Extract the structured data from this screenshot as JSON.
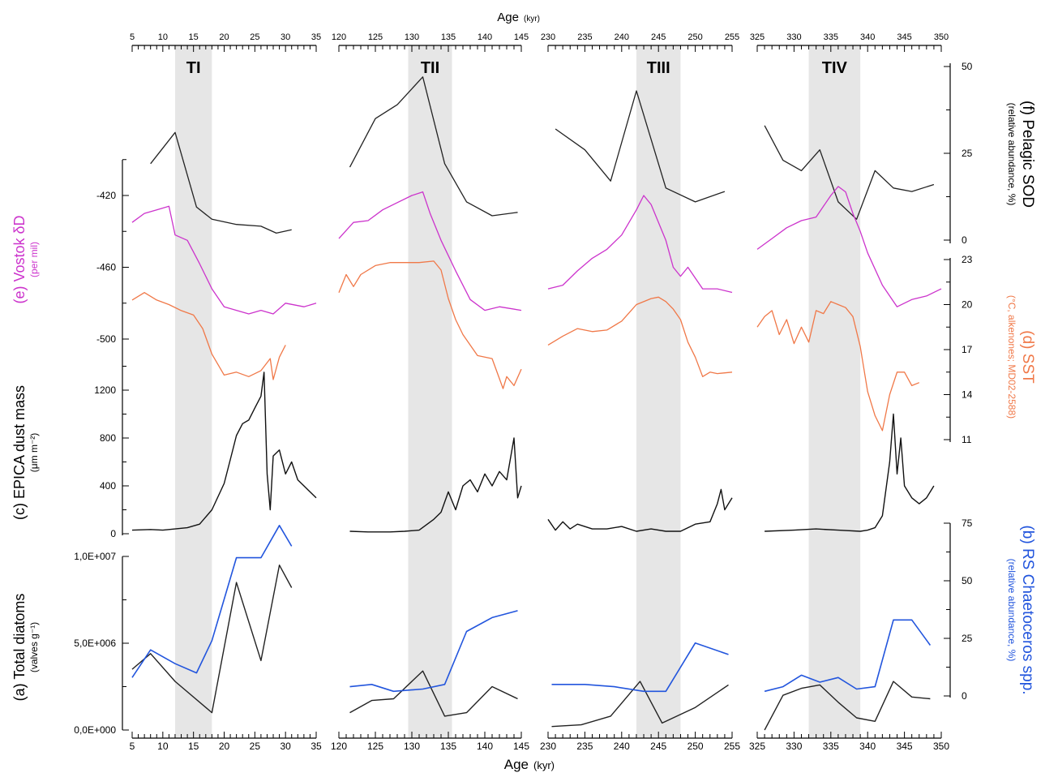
{
  "figure": {
    "top_axis_label": "Age",
    "top_axis_unit": "(kyr)",
    "bottom_axis_label": "Age",
    "bottom_axis_unit": "(kyr)"
  },
  "colors": {
    "pelagic": "#222222",
    "vostok": "#cc33cc",
    "sst": "#f07848",
    "dust": "#111111",
    "diatoms": "#222222",
    "chaetoceros": "#2255dd",
    "shade": "#e6e6e6"
  },
  "left_axes": {
    "vostok": {
      "label_main": "(e) Vostok δD",
      "label_unit": "(per mil)",
      "ticks": [
        "-420",
        "-460",
        "-500"
      ]
    },
    "dust": {
      "label_main": "(c) EPICA dust mass",
      "label_unit": "(μm m⁻²)",
      "ticks": [
        "1200",
        "800",
        "400",
        "0"
      ]
    },
    "diatoms": {
      "label_main": "(a) Total diatoms",
      "label_unit": "(valves g⁻¹)",
      "ticks": [
        "1,0E+007",
        "5,0E+006",
        "0,0E+000"
      ]
    }
  },
  "right_axes": {
    "pelagic": {
      "label_main": "(f) Pelagic SOD",
      "label_unit": "(relative abundance, %)",
      "ticks": [
        "50",
        "25",
        "0"
      ]
    },
    "sst": {
      "label_main": "(d) SST",
      "label_unit": "(°C, alkenones; MD02-2588)",
      "ticks": [
        "23",
        "20",
        "17",
        "14",
        "11"
      ]
    },
    "chaetoceros": {
      "label_main": "(b) RS Chaetoceros spp.",
      "label_unit": "(relative abundance, %)",
      "ticks": [
        "75",
        "50",
        "25",
        "0"
      ]
    }
  },
  "chart_data": [
    {
      "type": "line",
      "panel": "TI",
      "title": "TI",
      "xlim": [
        5,
        35
      ],
      "xticks": [
        "5",
        "10",
        "15",
        "20",
        "25",
        "30",
        "35"
      ],
      "shade": [
        12,
        18
      ],
      "series": [
        {
          "name": "(f) Pelagic SOD",
          "x": [
            8,
            12,
            15.5,
            18,
            22,
            26,
            28.5,
            31
          ],
          "y": [
            22,
            31,
            9.5,
            6,
            4.5,
            4,
            2,
            3
          ]
        },
        {
          "name": "(e) Vostok δD",
          "x": [
            5,
            7,
            9,
            11,
            12,
            14,
            16,
            18,
            20,
            22,
            24,
            26,
            28,
            30,
            33,
            35
          ],
          "y": [
            -435,
            -430,
            -428,
            -426,
            -442,
            -445,
            -458,
            -472,
            -482,
            -484,
            -486,
            -484,
            -486,
            -480,
            -482,
            -480
          ]
        },
        {
          "name": "(d) SST",
          "x": [
            5,
            7,
            9,
            11,
            13,
            15,
            16.5,
            18,
            20,
            22,
            24,
            26,
            27.5,
            28,
            29,
            30
          ],
          "y": [
            20.3,
            20.8,
            20.3,
            20,
            19.6,
            19.3,
            18.4,
            16.7,
            15.3,
            15.5,
            15.2,
            15.6,
            16.4,
            15.0,
            16.5,
            17.3
          ]
        },
        {
          "name": "(c) EPICA dust mass",
          "x": [
            5,
            8,
            10,
            12,
            14,
            16,
            18,
            20,
            21,
            22,
            23,
            24,
            25,
            26,
            26.5,
            27,
            27.5,
            28,
            29,
            30,
            31,
            32,
            33,
            34,
            35
          ],
          "y": [
            30,
            35,
            30,
            40,
            50,
            80,
            200,
            420,
            620,
            820,
            920,
            950,
            1050,
            1150,
            1350,
            500,
            200,
            650,
            700,
            500,
            600,
            450,
            400,
            350,
            300
          ]
        },
        {
          "name": "(a) Total diatoms",
          "x": [
            5,
            8,
            12,
            18,
            22,
            26,
            29,
            31
          ],
          "y": [
            3500000,
            4400000,
            2800000,
            1000000,
            8500000,
            4000000,
            9500000,
            8200000
          ]
        },
        {
          "name": "(b) RS Chaetoceros spp.",
          "x": [
            5,
            8,
            12,
            15.5,
            18,
            22,
            26,
            29,
            31
          ],
          "y": [
            8,
            20,
            14,
            10,
            24,
            60,
            60,
            74,
            65
          ]
        }
      ]
    },
    {
      "type": "line",
      "panel": "TII",
      "title": "TII",
      "xlim": [
        120,
        145
      ],
      "xticks": [
        "120",
        "125",
        "130",
        "135",
        "140",
        "145"
      ],
      "shade": [
        129.5,
        135.5
      ],
      "series": [
        {
          "name": "(f) Pelagic SOD",
          "x": [
            121.5,
            125,
            128,
            131.5,
            134.5,
            137.5,
            141,
            144.5
          ],
          "y": [
            21,
            35,
            39,
            47,
            22,
            11,
            7,
            8
          ]
        },
        {
          "name": "(e) Vostok δD",
          "x": [
            120,
            122,
            124,
            126,
            128,
            130,
            131.5,
            132.5,
            134,
            136,
            138,
            140,
            142,
            145
          ],
          "y": [
            -444,
            -435,
            -434,
            -428,
            -424,
            -420,
            -418,
            -430,
            -445,
            -462,
            -478,
            -484,
            -482,
            -484
          ]
        },
        {
          "name": "(d) SST",
          "x": [
            120,
            121,
            122,
            123,
            125,
            127,
            129,
            131,
            133,
            134,
            135,
            136,
            137,
            139,
            141,
            142.5,
            143,
            144,
            145
          ],
          "y": [
            20.8,
            22,
            21.2,
            22,
            22.6,
            22.8,
            22.8,
            22.8,
            22.9,
            22.3,
            20.4,
            19,
            18,
            16.6,
            16.4,
            14.4,
            15.2,
            14.6,
            15.7
          ]
        },
        {
          "name": "(c) EPICA dust mass",
          "x": [
            121.5,
            124,
            127,
            129,
            131,
            133,
            134,
            135,
            136,
            137,
            138,
            139,
            140,
            141,
            142,
            143,
            144,
            144.5,
            145
          ],
          "y": [
            20,
            15,
            15,
            20,
            30,
            120,
            180,
            350,
            200,
            400,
            450,
            350,
            500,
            400,
            520,
            450,
            800,
            300,
            400
          ]
        },
        {
          "name": "(a) Total diatoms",
          "x": [
            121.5,
            124.5,
            127.5,
            131.5,
            134.5,
            137.5,
            141,
            144.5
          ],
          "y": [
            1000000,
            1700000,
            1800000,
            3400000,
            800000,
            1000000,
            2500000,
            1800000
          ]
        },
        {
          "name": "(b) RS Chaetoceros spp.",
          "x": [
            121.5,
            124.5,
            127.5,
            131.5,
            134.5,
            137.5,
            141,
            144.5
          ],
          "y": [
            4,
            5,
            2,
            3,
            5,
            28,
            34,
            37
          ]
        }
      ]
    },
    {
      "type": "line",
      "panel": "TIII",
      "title": "TIII",
      "xlim": [
        230,
        255
      ],
      "xticks": [
        "230",
        "235",
        "240",
        "245",
        "250",
        "255"
      ],
      "shade": [
        242,
        248
      ],
      "series": [
        {
          "name": "(f) Pelagic SOD",
          "x": [
            231,
            235,
            238.5,
            242,
            246,
            250,
            254
          ],
          "y": [
            32,
            26,
            17,
            43,
            15,
            11,
            14
          ]
        },
        {
          "name": "(e) Vostok δD",
          "x": [
            230,
            232,
            234,
            236,
            238,
            240,
            242,
            243,
            244,
            246,
            247,
            248,
            249,
            251,
            253,
            255
          ],
          "y": [
            -472,
            -470,
            -462,
            -455,
            -450,
            -442,
            -428,
            -420,
            -425,
            -445,
            -460,
            -465,
            -460,
            -472,
            -472,
            -474
          ]
        },
        {
          "name": "(d) SST",
          "x": [
            230,
            232,
            234,
            236,
            238,
            240,
            242,
            244,
            245,
            246,
            247,
            248,
            249,
            250,
            251,
            252,
            253,
            255
          ],
          "y": [
            17.3,
            17.9,
            18.4,
            18.2,
            18.3,
            18.9,
            20,
            20.4,
            20.5,
            20.2,
            19.7,
            19,
            17.5,
            16.5,
            15.2,
            15.5,
            15.4,
            15.5
          ]
        },
        {
          "name": "(c) EPICA dust mass",
          "x": [
            230,
            231,
            232,
            233,
            234,
            236,
            238,
            240,
            242,
            244,
            246,
            248,
            250,
            252,
            253,
            253.5,
            254,
            255
          ],
          "y": [
            120,
            30,
            100,
            40,
            80,
            40,
            40,
            60,
            20,
            40,
            20,
            20,
            80,
            100,
            250,
            370,
            200,
            300
          ]
        },
        {
          "name": "(a) Total diatoms",
          "x": [
            230.5,
            234.5,
            238.5,
            242.5,
            245.5,
            250,
            254.5
          ],
          "y": [
            200000,
            300000,
            800000,
            2800000,
            400000,
            1300000,
            2600000
          ]
        },
        {
          "name": "(b) RS Chaetoceros spp.",
          "x": [
            230.5,
            235,
            239,
            243,
            246,
            250,
            254.5
          ],
          "y": [
            5,
            5,
            4,
            2,
            2,
            23,
            18
          ]
        }
      ]
    },
    {
      "type": "line",
      "panel": "TIV",
      "title": "TIV",
      "xlim": [
        325,
        350
      ],
      "xticks": [
        "325",
        "330",
        "335",
        "340",
        "345",
        "350"
      ],
      "shade": [
        332,
        339
      ],
      "series": [
        {
          "name": "(f) Pelagic SOD",
          "x": [
            326,
            328.5,
            331,
            333.5,
            336,
            338.5,
            341,
            343.5,
            346,
            349
          ],
          "y": [
            33,
            23,
            20,
            26,
            11,
            6,
            20,
            15,
            14,
            16
          ]
        },
        {
          "name": "(e) Vostok δD",
          "x": [
            325,
            327,
            329,
            331,
            333,
            334,
            335,
            336,
            337,
            338,
            339,
            340,
            342,
            344,
            346,
            348,
            350
          ],
          "y": [
            -450,
            -444,
            -438,
            -434,
            -432,
            -426,
            -420,
            -415,
            -418,
            -430,
            -440,
            -452,
            -470,
            -482,
            -478,
            -476,
            -472
          ]
        },
        {
          "name": "(d) SST",
          "x": [
            325,
            326,
            327,
            328,
            329,
            330,
            331,
            332,
            333,
            334,
            335,
            336,
            337,
            338,
            339,
            340,
            341,
            342,
            343,
            344,
            345,
            346,
            347
          ],
          "y": [
            18.5,
            19.2,
            19.6,
            18.0,
            19.0,
            17.4,
            18.5,
            17.5,
            19.6,
            19.4,
            20.2,
            20.0,
            19.8,
            19.2,
            17.2,
            14.2,
            12.6,
            11.6,
            14.0,
            15.5,
            15.5,
            14.6,
            14.8
          ]
        },
        {
          "name": "(c) EPICA dust mass",
          "x": [
            326,
            330,
            333,
            336,
            339,
            340,
            341,
            342,
            343,
            343.5,
            344,
            344.5,
            345,
            346,
            347,
            348,
            349
          ],
          "y": [
            20,
            30,
            40,
            30,
            20,
            30,
            50,
            150,
            600,
            1000,
            500,
            800,
            400,
            300,
            250,
            300,
            400
          ]
        },
        {
          "name": "(a) Total diatoms",
          "x": [
            326,
            328.5,
            331,
            333.5,
            336,
            338.5,
            341,
            343.5,
            346,
            348.5
          ],
          "y": [
            0,
            2000000,
            2400000,
            2600000,
            1600000,
            700000,
            500000,
            2800000,
            1900000,
            1800000
          ]
        },
        {
          "name": "(b) RS Chaetoceros spp.",
          "x": [
            326,
            328.5,
            331,
            333.5,
            336,
            338.5,
            341,
            343.5,
            346,
            348.5
          ],
          "y": [
            2,
            4,
            9,
            6,
            8,
            3,
            4,
            33,
            33,
            22
          ]
        }
      ]
    }
  ]
}
